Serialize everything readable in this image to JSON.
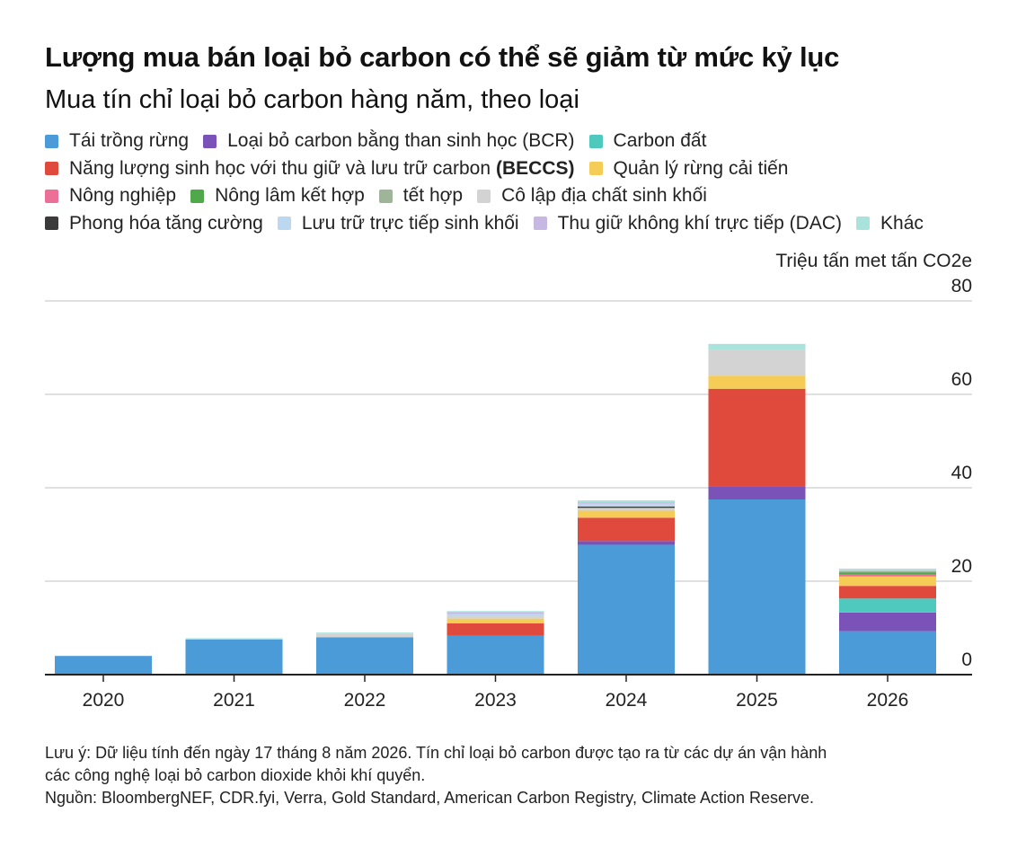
{
  "header": {
    "title": "Lượng mua bán loại bỏ carbon có thể sẽ giảm từ mức kỷ lục",
    "subtitle": "Mua tín chỉ loại bỏ carbon hàng năm, theo loại"
  },
  "legend": {
    "rows": [
      [
        {
          "label": "Tái trồng rừng",
          "color": "#4a9bd8"
        },
        {
          "label": "Loại bỏ carbon bằng than sinh học (BCR)",
          "color": "#7a52b8"
        },
        {
          "label": "Carbon đất",
          "color": "#4fc8bd"
        }
      ],
      [
        {
          "label": "Năng lượng sinh học với thu giữ và lưu trữ carbon",
          "bold": "(BECCS)",
          "color": "#e04a3c"
        },
        {
          "label": "Quản lý rừng cải tiến",
          "color": "#f5cc55"
        }
      ],
      [
        {
          "label": "Nông nghiệp",
          "color": "#ec6f97"
        },
        {
          "label": "Nông lâm kết hợp",
          "color": "#4fa84a"
        },
        {
          "label": "tết hợp",
          "color": "#9fb59a"
        },
        {
          "label": "Cô lập địa chất sinh khối",
          "color": "#d3d3d3"
        }
      ],
      [
        {
          "label": "Phong hóa tăng cường",
          "color": "#3a3a3a"
        },
        {
          "label": "Lưu trữ trực tiếp sinh khối",
          "color": "#bcd8f0"
        },
        {
          "label": "Thu giữ không khí trực tiếp (DAC)",
          "color": "#c7b7e3"
        },
        {
          "label": "Khác",
          "color": "#a8e3dc"
        }
      ]
    ]
  },
  "chart_data": {
    "type": "bar",
    "stacked": true,
    "categories": [
      "2020",
      "2021",
      "2022",
      "2023",
      "2024",
      "2025",
      "2026"
    ],
    "ylabel": "Triệu tấn met tấn CO2e",
    "ylim": [
      0,
      80
    ],
    "yticks": [
      0,
      20,
      40,
      60,
      80
    ],
    "grid": true,
    "y_axis_side": "right",
    "series": [
      {
        "name": "Tái trồng rừng",
        "color": "#4a9bd8",
        "values": [
          4,
          7.5,
          8,
          8.3,
          27.8,
          37.5,
          9.3
        ]
      },
      {
        "name": "Loại bỏ carbon bằng than sinh học (BCR)",
        "color": "#7a52b8",
        "values": [
          0,
          0,
          0,
          0,
          0.8,
          2.7,
          4
        ]
      },
      {
        "name": "Carbon đất",
        "color": "#4fc8bd",
        "values": [
          0,
          0,
          0,
          0,
          0,
          0,
          3
        ]
      },
      {
        "name": "Năng lượng sinh học với thu giữ và lưu trữ carbon (BECCS)",
        "color": "#e04a3c",
        "values": [
          0,
          0,
          0,
          2.7,
          5,
          21,
          2.7
        ]
      },
      {
        "name": "Quản lý rừng cải tiến",
        "color": "#f5cc55",
        "values": [
          0,
          0,
          0,
          1,
          1.5,
          2.8,
          2
        ]
      },
      {
        "name": "Nông nghiệp",
        "color": "#ec6f97",
        "values": [
          0,
          0,
          0,
          0,
          0,
          0,
          0.4
        ]
      },
      {
        "name": "Nông lâm kết hợp",
        "color": "#4fa84a",
        "values": [
          0,
          0,
          0,
          0,
          0,
          0,
          0.5
        ]
      },
      {
        "name": "tết hợp",
        "color": "#9fb59a",
        "values": [
          0,
          0,
          0,
          0,
          0,
          0,
          0.3
        ]
      },
      {
        "name": "Cô lập địa chất sinh khối",
        "color": "#d3d3d3",
        "values": [
          0,
          0,
          0.8,
          0.6,
          0.6,
          5.5,
          0.2
        ]
      },
      {
        "name": "Phong hóa tăng cường",
        "color": "#3a3a3a",
        "values": [
          0,
          0,
          0,
          0,
          0.3,
          0,
          0
        ]
      },
      {
        "name": "Lưu trữ trực tiếp sinh khối",
        "color": "#bcd8f0",
        "values": [
          0,
          0,
          0,
          0.4,
          0.6,
          0,
          0
        ]
      },
      {
        "name": "Thu giữ không khí trực tiếp (DAC)",
        "color": "#c7b7e3",
        "values": [
          0,
          0,
          0,
          0.4,
          0.3,
          0,
          0
        ]
      },
      {
        "name": "Khác",
        "color": "#a8e3dc",
        "values": [
          0,
          0.3,
          0.2,
          0.2,
          0.4,
          1.3,
          0.3
        ]
      }
    ]
  },
  "notes": {
    "note_line1": "Lưu ý: Dữ liệu tính đến ngày 17 tháng 8 năm 2026. Tín chỉ loại bỏ carbon được tạo ra từ các dự án vận hành",
    "note_line2": "các công nghệ loại bỏ carbon dioxide khỏi khí quyển.",
    "source": "Nguồn: BloombergNEF, CDR.fyi, Verra, Gold Standard, American Carbon Registry, Climate Action Reserve."
  }
}
